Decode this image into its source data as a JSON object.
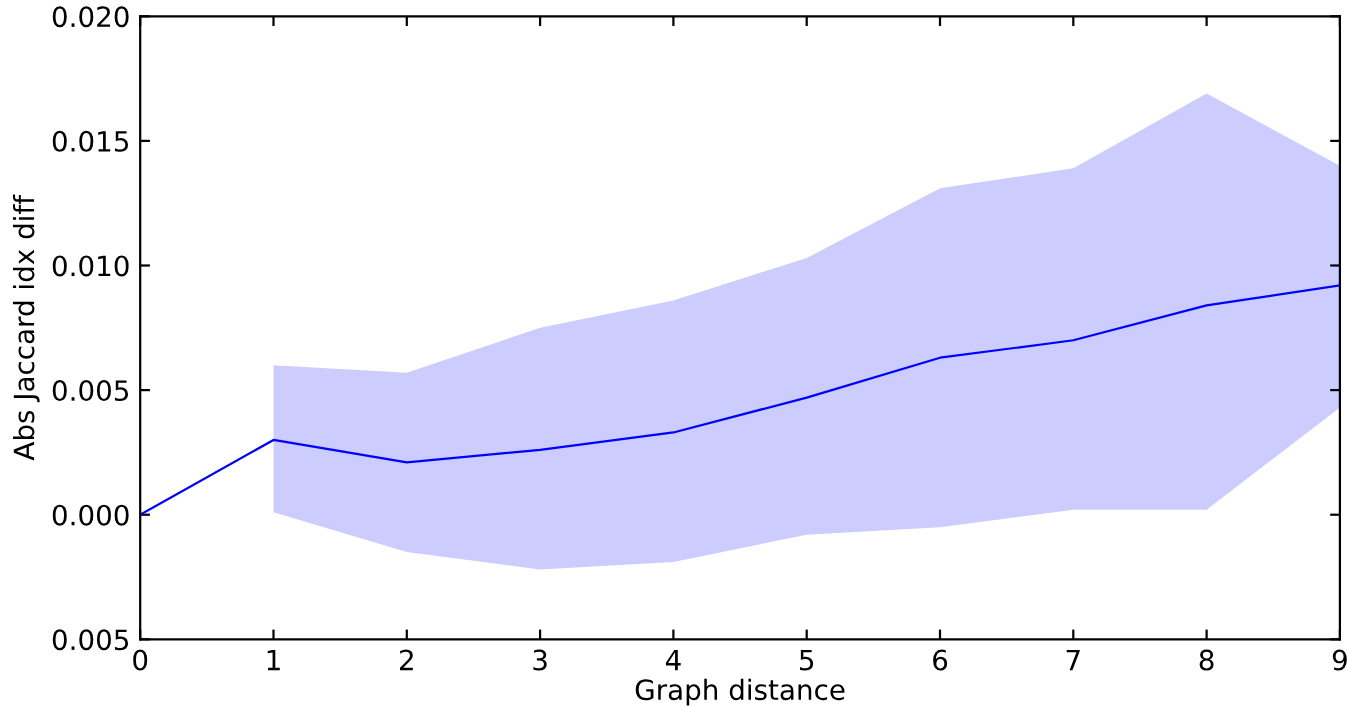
{
  "chart_data": {
    "type": "line",
    "xlabel": "Graph distance",
    "ylabel": "Abs Jaccard idx diff",
    "x": [
      0,
      1,
      2,
      3,
      4,
      5,
      6,
      7,
      8,
      9
    ],
    "series": [
      {
        "color": "#0000ff",
        "values": [
          0.0,
          0.003,
          0.0021,
          0.0026,
          0.0033,
          0.0047,
          0.0063,
          0.007,
          0.0084,
          0.0092
        ],
        "lower": [
          null,
          0.0001,
          -0.0015,
          -0.0022,
          -0.0019,
          -0.0008,
          -0.0005,
          0.0002,
          0.0002,
          0.0043
        ],
        "upper": [
          null,
          0.006,
          0.0057,
          0.0075,
          0.0086,
          0.0103,
          0.0131,
          0.0139,
          0.0169,
          0.014
        ]
      }
    ],
    "xlim": [
      0,
      9
    ],
    "xticks": [
      0,
      1,
      2,
      3,
      4,
      5,
      6,
      7,
      8,
      9
    ],
    "ylim": [
      -0.005,
      0.02
    ],
    "yticks": [
      {
        "value": -0.005,
        "label": "0.005"
      },
      {
        "value": 0.0,
        "label": "0.000"
      },
      {
        "value": 0.005,
        "label": "0.005"
      },
      {
        "value": 0.01,
        "label": "0.010"
      },
      {
        "value": 0.015,
        "label": "0.015"
      },
      {
        "value": 0.02,
        "label": "0.020"
      }
    ],
    "grid": false,
    "legend": false,
    "marker": "none",
    "line_style": "solid"
  }
}
